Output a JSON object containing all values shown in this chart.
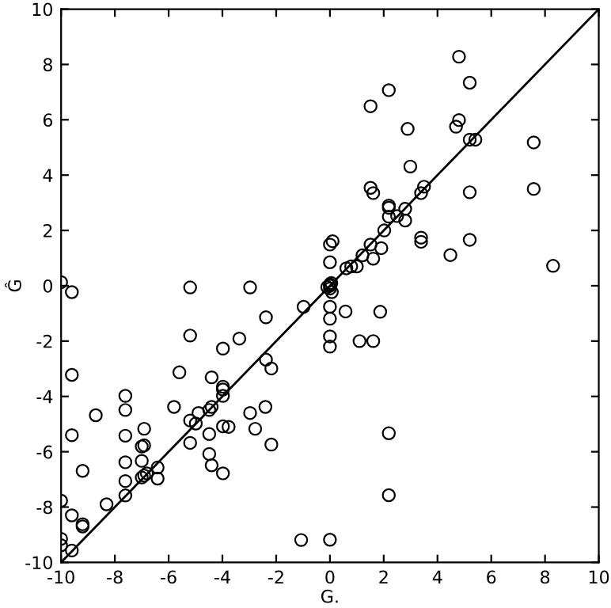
{
  "chart_data": {
    "type": "scatter",
    "xlabel": "G.",
    "ylabel": "Ĝ",
    "xlim": [
      -10,
      10
    ],
    "ylim": [
      -10,
      10
    ],
    "xticks": [
      -10,
      -8,
      -6,
      -4,
      -2,
      0,
      2,
      4,
      6,
      8,
      10
    ],
    "yticks": [
      -10,
      -8,
      -6,
      -4,
      -2,
      0,
      2,
      4,
      6,
      8,
      10
    ],
    "grid": false,
    "series": [
      {
        "color": "#000000",
        "marker": "circle",
        "x": [
          4.8,
          5.2,
          2.19,
          1.51,
          4.8,
          4.69,
          2.89,
          5.2,
          5.41,
          7.58,
          2.99,
          1.51,
          1.61,
          3.39,
          3.5,
          5.2,
          7.58,
          2.19,
          2.19,
          2.8,
          2.19,
          2.5,
          2.8,
          2.02,
          0.1,
          0.0,
          1.51,
          1.91,
          3.39,
          3.39,
          5.2,
          1.21,
          1.61,
          4.48,
          1.0,
          0.79,
          0.61,
          8.3,
          0.0,
          0.0,
          0.0,
          -0.1,
          0.05,
          0.0,
          0.07,
          0.0,
          0.0,
          0.58,
          1.87,
          0.0,
          0.0,
          1.1,
          1.61,
          2.19,
          2.19,
          0.0,
          -10.0,
          -9.6,
          -5.2,
          -2.97,
          -0.98,
          -2.38,
          -5.2,
          -3.37,
          -3.98,
          -2.38,
          -2.18,
          -9.6,
          -5.6,
          -4.4,
          -3.98,
          -3.98,
          -3.98,
          -7.61,
          -7.61,
          -5.8,
          -8.71,
          -2.4,
          -2.97,
          -4.4,
          -4.49,
          -4.89,
          -5.2,
          -4.99,
          -3.98,
          -3.77,
          -2.78,
          -6.91,
          -9.6,
          -7.61,
          -4.49,
          -5.2,
          -2.18,
          -7.0,
          -6.91,
          -4.49,
          -7.61,
          -7.0,
          -6.41,
          -4.4,
          -9.2,
          -3.98,
          -6.41,
          -6.91,
          -6.81,
          -7.0,
          -7.61,
          -7.61,
          -8.31,
          -10.0,
          -9.6,
          -9.2,
          -9.2,
          -10.0,
          -10.0,
          -9.6,
          -1.07
        ],
        "values": [
          8.28,
          7.34,
          7.07,
          6.49,
          5.99,
          5.75,
          5.67,
          5.28,
          5.28,
          5.18,
          4.31,
          3.54,
          3.35,
          3.35,
          3.58,
          3.38,
          3.5,
          2.9,
          2.5,
          2.78,
          2.82,
          2.52,
          2.36,
          2.0,
          1.61,
          1.49,
          1.49,
          1.36,
          1.74,
          1.59,
          1.66,
          1.1,
          0.98,
          1.11,
          0.7,
          0.7,
          0.63,
          0.72,
          0.85,
          0.0,
          -0.1,
          -0.05,
          0.1,
          0.05,
          -0.23,
          -0.76,
          -1.19,
          -0.93,
          -0.94,
          -1.83,
          -2.2,
          -2.0,
          -2.0,
          -5.33,
          -7.57,
          -9.18,
          0.13,
          -0.23,
          -0.06,
          -0.06,
          -0.76,
          -1.14,
          -1.8,
          -1.91,
          -2.27,
          -2.67,
          -2.99,
          -3.22,
          -3.13,
          -3.31,
          -3.65,
          -3.75,
          -3.98,
          -3.98,
          -4.49,
          -4.38,
          -4.68,
          -4.38,
          -4.6,
          -4.38,
          -4.49,
          -4.6,
          -4.87,
          -4.98,
          -5.08,
          -5.1,
          -5.17,
          -5.17,
          -5.4,
          -5.42,
          -5.36,
          -5.68,
          -5.74,
          -5.81,
          -5.77,
          -6.08,
          -6.38,
          -6.33,
          -6.57,
          -6.49,
          -6.69,
          -6.78,
          -6.97,
          -6.86,
          -6.78,
          -6.93,
          -7.06,
          -7.58,
          -7.9,
          -7.77,
          -8.3,
          -8.62,
          -8.7,
          -9.15,
          -9.38,
          -9.57,
          -9.19
        ]
      },
      {
        "type": "line",
        "color": "#000000",
        "marker": "none",
        "line_style": "solid",
        "x": [
          -10,
          10
        ],
        "values": [
          -10,
          10
        ]
      }
    ]
  }
}
